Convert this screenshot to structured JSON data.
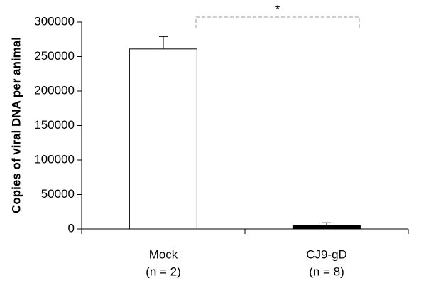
{
  "chart_data": {
    "type": "bar",
    "y_label": "Copies of viral DNA per animal",
    "categories": [
      "Mock",
      "CJ9-gD"
    ],
    "category_notes": [
      "(n = 2)",
      "(n = 8)"
    ],
    "values": [
      261000,
      5000
    ],
    "errors": [
      18000,
      4000
    ],
    "colors": [
      "#ffffff",
      "#000000"
    ],
    "ylim": [
      0,
      300000
    ],
    "yticks": [
      0,
      50000,
      100000,
      150000,
      200000,
      250000,
      300000
    ],
    "annotation": "*"
  }
}
